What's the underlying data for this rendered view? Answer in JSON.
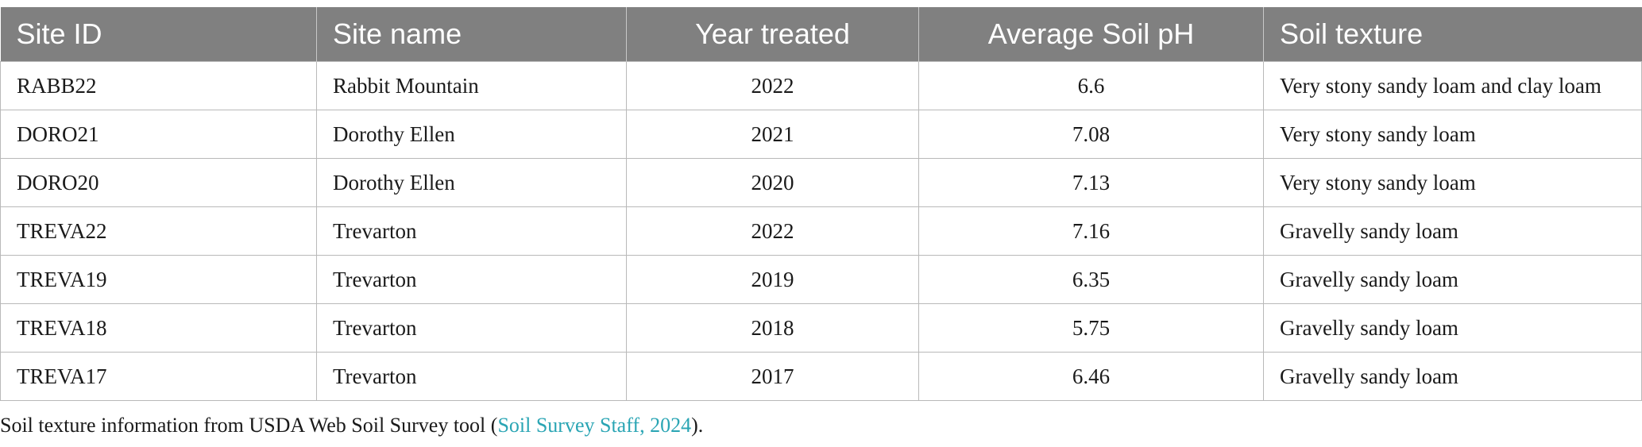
{
  "table": {
    "headers": [
      "Site ID",
      "Site name",
      "Year treated",
      "Average Soil pH",
      "Soil texture"
    ],
    "rows": [
      [
        "RABB22",
        "Rabbit Mountain",
        "2022",
        "6.6",
        "Very stony sandy loam and clay loam"
      ],
      [
        "DORO21",
        "Dorothy Ellen",
        "2021",
        "7.08",
        "Very stony sandy loam"
      ],
      [
        "DORO20",
        "Dorothy Ellen",
        "2020",
        "7.13",
        "Very stony sandy loam"
      ],
      [
        "TREVA22",
        "Trevarton",
        "2022",
        "7.16",
        "Gravelly sandy loam"
      ],
      [
        "TREVA19",
        "Trevarton",
        "2019",
        "6.35",
        "Gravelly sandy loam"
      ],
      [
        "TREVA18",
        "Trevarton",
        "2018",
        "5.75",
        "Gravelly sandy loam"
      ],
      [
        "TREVA17",
        "Trevarton",
        "2017",
        "6.46",
        "Gravelly sandy loam"
      ]
    ]
  },
  "footnote": {
    "prefix": "Soil texture information from USDA Web Soil Survey tool (",
    "citation": "Soil Survey Staff, 2024",
    "suffix": ")."
  },
  "colors": {
    "header_bg": "#808080",
    "header_text": "#ffffff",
    "citation_link": "#2aa5b4",
    "grid_line": "#b9b9b9"
  }
}
